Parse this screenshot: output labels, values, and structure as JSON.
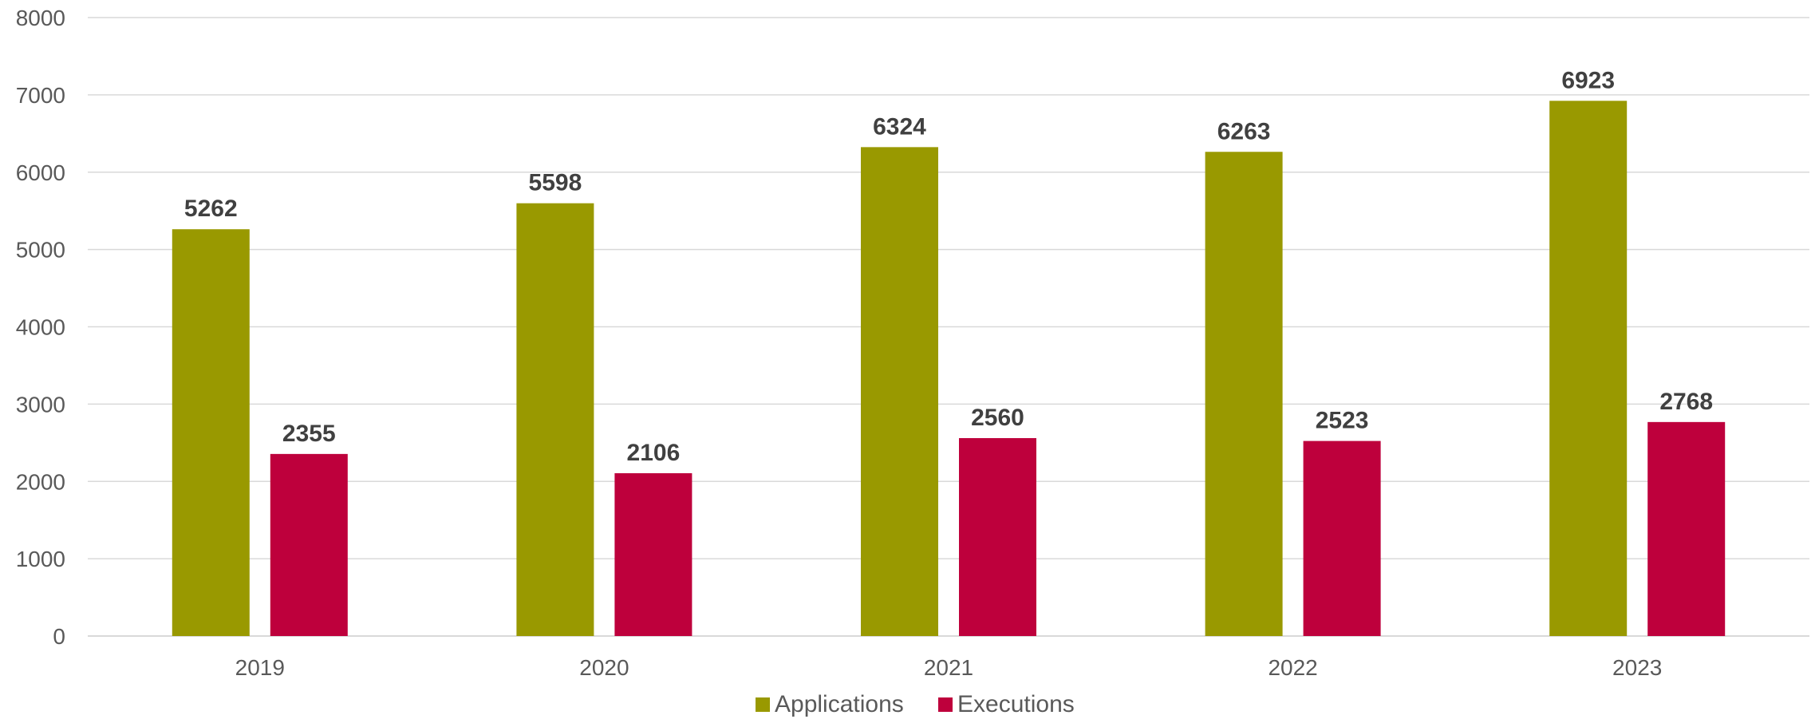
{
  "chart_data": {
    "type": "bar",
    "title": "",
    "xlabel": "",
    "ylabel": "",
    "categories": [
      "2019",
      "2020",
      "2021",
      "2022",
      "2023"
    ],
    "series": [
      {
        "name": "Applications",
        "color": "#999900",
        "values": [
          5262,
          5598,
          6324,
          6263,
          6923
        ]
      },
      {
        "name": "Executions",
        "color": "#BE003C",
        "values": [
          2355,
          2106,
          2560,
          2523,
          2768
        ]
      }
    ],
    "ylim": [
      0,
      8000
    ],
    "yticks": [
      0,
      1000,
      2000,
      3000,
      4000,
      5000,
      6000,
      7000,
      8000
    ],
    "grid": true,
    "data_labels": true,
    "legend": "bottom-center"
  }
}
